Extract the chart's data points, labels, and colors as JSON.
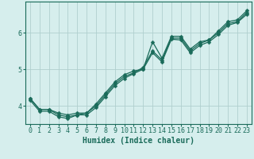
{
  "xlabel": "Humidex (Indice chaleur)",
  "ylabel": "",
  "bg_color": "#d6eeed",
  "grid_color": "#b0cfce",
  "line_color": "#1a6b5a",
  "xlim": [
    -0.5,
    23.5
  ],
  "ylim": [
    3.5,
    6.85
  ],
  "yticks": [
    4,
    5,
    6
  ],
  "xticks": [
    0,
    1,
    2,
    3,
    4,
    5,
    6,
    7,
    8,
    9,
    10,
    11,
    12,
    13,
    14,
    15,
    16,
    17,
    18,
    19,
    20,
    21,
    22,
    23
  ],
  "series": [
    [
      4.2,
      3.9,
      3.9,
      3.8,
      3.75,
      3.8,
      3.8,
      4.05,
      4.35,
      4.65,
      4.85,
      4.95,
      5.0,
      5.75,
      5.3,
      5.9,
      5.9,
      5.55,
      5.75,
      5.8,
      6.05,
      6.3,
      6.35,
      6.6
    ],
    [
      4.2,
      3.9,
      3.9,
      3.75,
      3.7,
      3.75,
      3.8,
      4.0,
      4.3,
      4.6,
      4.8,
      4.9,
      5.05,
      5.5,
      5.25,
      5.85,
      5.85,
      5.5,
      5.7,
      5.8,
      6.0,
      6.25,
      6.3,
      6.55
    ],
    [
      4.15,
      3.85,
      3.85,
      3.7,
      3.65,
      3.75,
      3.75,
      3.95,
      4.25,
      4.55,
      4.75,
      4.88,
      5.0,
      5.45,
      5.2,
      5.82,
      5.8,
      5.45,
      5.65,
      5.75,
      5.95,
      6.2,
      6.28,
      6.5
    ]
  ],
  "marker": "D",
  "markersize": 2.5,
  "linewidth": 0.9,
  "label_fontsize": 7,
  "tick_fontsize": 6
}
